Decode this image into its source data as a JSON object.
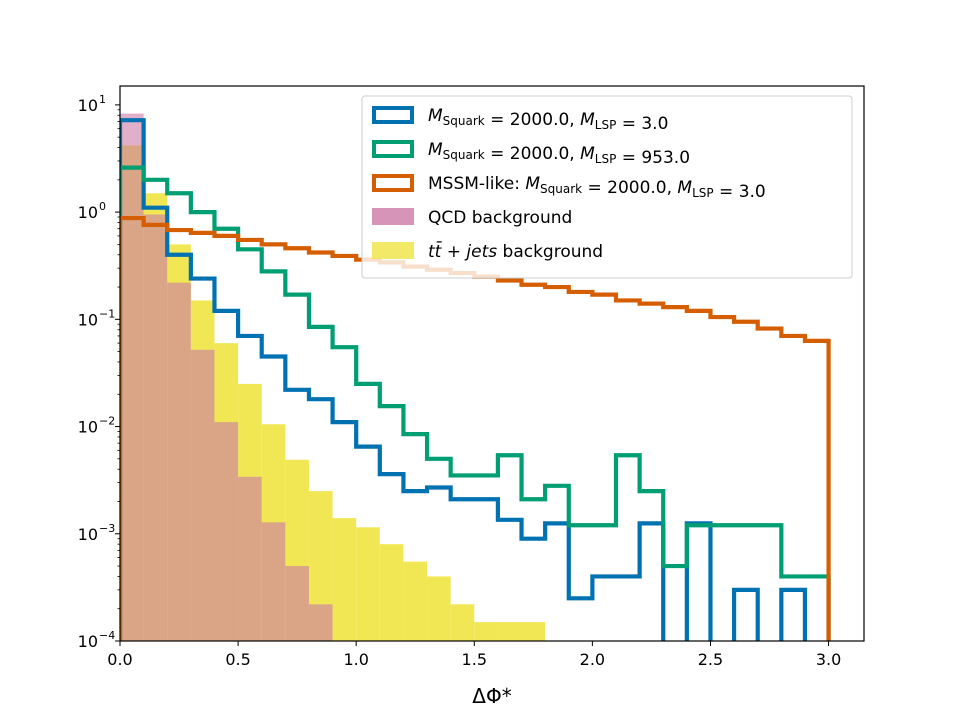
{
  "chart_data": {
    "type": "histogram",
    "xlabel": "ΔΦ*",
    "ylabel": "",
    "xlim": [
      0,
      3.15
    ],
    "ylim": [
      0.0001,
      15
    ],
    "yscale": "log",
    "bin_edges": [
      0.0,
      0.1,
      0.2,
      0.3,
      0.4,
      0.5,
      0.6,
      0.7,
      0.8,
      0.9,
      1.0,
      1.1,
      1.2,
      1.3,
      1.4,
      1.5,
      1.6,
      1.7,
      1.8,
      1.9,
      2.0,
      2.1,
      2.2,
      2.3,
      2.4,
      2.5,
      2.6,
      2.7,
      2.8,
      2.9,
      3.0
    ],
    "x_ticks": [
      {
        "value": 0.0,
        "label": "0.0"
      },
      {
        "value": 0.5,
        "label": "0.5"
      },
      {
        "value": 1.0,
        "label": "1.0"
      },
      {
        "value": 1.5,
        "label": "1.5"
      },
      {
        "value": 2.0,
        "label": "2.0"
      },
      {
        "value": 2.5,
        "label": "2.5"
      },
      {
        "value": 3.0,
        "label": "3.0"
      }
    ],
    "y_ticks": [
      {
        "value": 10,
        "base": "10",
        "exp": "1"
      },
      {
        "value": 1,
        "base": "10",
        "exp": "0"
      },
      {
        "value": 0.1,
        "base": "10",
        "exp": "−1"
      },
      {
        "value": 0.01,
        "base": "10",
        "exp": "−2"
      },
      {
        "value": 0.001,
        "base": "10",
        "exp": "−3"
      },
      {
        "value": 0.0001,
        "base": "10",
        "exp": "−4"
      }
    ],
    "filled_series": [
      {
        "key": "ttbar",
        "name": "tt̄ + jets background",
        "color": "#f0e442",
        "values": [
          4.2,
          1.5,
          0.5,
          0.15,
          0.06,
          0.025,
          0.0105,
          0.0049,
          0.0025,
          0.0014,
          0.00115,
          0.0008,
          0.00055,
          0.0004,
          0.00022,
          0.00015,
          0.00015,
          0.00015,
          9e-05,
          0.0001,
          0.0,
          0.0001,
          0.0,
          0.0,
          0.0,
          0.0,
          0.0,
          0.0,
          0.0,
          0.0
        ]
      },
      {
        "key": "qcd",
        "name": "QCD background",
        "color": "#cc79a7",
        "values": [
          8.3,
          0.95,
          0.22,
          0.052,
          0.011,
          0.0034,
          0.00128,
          0.0005,
          0.00022,
          0.0,
          0.0,
          0.0,
          0.0,
          0.0,
          0.0,
          0.0,
          0.0,
          0.0,
          0.0,
          0.0,
          0.0,
          0.0,
          0.0,
          0.0,
          0.0,
          0.0,
          0.0,
          0.0,
          0.0,
          0.0
        ]
      }
    ],
    "step_series": [
      {
        "key": "squark_lsp3",
        "color": "#0072b2",
        "values": [
          7.2,
          1.1,
          0.4,
          0.24,
          0.12,
          0.07,
          0.045,
          0.022,
          0.018,
          0.011,
          0.0065,
          0.0036,
          0.0025,
          0.0027,
          0.0021,
          0.0021,
          0.00135,
          0.0009,
          0.00125,
          0.00025,
          0.0004,
          0.0004,
          0.00125,
          2e-05,
          0.00125,
          2e-05,
          0.0003,
          2e-05,
          0.0003,
          2e-05
        ]
      },
      {
        "key": "squark_lsp953",
        "color": "#009e73",
        "values": [
          2.6,
          2.0,
          1.5,
          1.0,
          0.7,
          0.45,
          0.28,
          0.17,
          0.085,
          0.055,
          0.025,
          0.0155,
          0.0085,
          0.005,
          0.0035,
          0.0035,
          0.0054,
          0.0021,
          0.0028,
          0.0012,
          0.0012,
          0.0054,
          0.0025,
          0.0005,
          0.0012,
          0.0012,
          0.0012,
          0.0012,
          0.0004,
          0.0004
        ]
      },
      {
        "key": "mssm_like",
        "color": "#d55e00",
        "values": [
          0.88,
          0.76,
          0.68,
          0.64,
          0.6,
          0.55,
          0.5,
          0.46,
          0.42,
          0.39,
          0.36,
          0.34,
          0.31,
          0.29,
          0.27,
          0.25,
          0.23,
          0.21,
          0.2,
          0.18,
          0.17,
          0.15,
          0.14,
          0.13,
          0.12,
          0.105,
          0.095,
          0.082,
          0.07,
          0.063
        ]
      }
    ],
    "legend": {
      "placement": "top-right",
      "entries": [
        {
          "key": "squark_lsp3",
          "style": "outline",
          "color": "#0072b2",
          "parts": [
            {
              "t": "M",
              "i": true
            },
            {
              "t": "Squark",
              "sub": true
            },
            {
              "t": " = 2000.0, "
            },
            {
              "t": "M",
              "i": true
            },
            {
              "t": "LSP",
              "sub": true
            },
            {
              "t": " = 3.0"
            }
          ]
        },
        {
          "key": "squark_lsp953",
          "style": "outline",
          "color": "#009e73",
          "parts": [
            {
              "t": "M",
              "i": true
            },
            {
              "t": "Squark",
              "sub": true
            },
            {
              "t": " = 2000.0, "
            },
            {
              "t": "M",
              "i": true
            },
            {
              "t": "LSP",
              "sub": true
            },
            {
              "t": " = 953.0"
            }
          ]
        },
        {
          "key": "mssm_like",
          "style": "outline",
          "color": "#d55e00",
          "parts": [
            {
              "t": "MSSM-like: "
            },
            {
              "t": "M",
              "i": true
            },
            {
              "t": "Squark",
              "sub": true
            },
            {
              "t": " = 2000.0, "
            },
            {
              "t": "M",
              "i": true
            },
            {
              "t": "LSP",
              "sub": true
            },
            {
              "t": " = 3.0"
            }
          ]
        },
        {
          "key": "qcd",
          "style": "filled",
          "color": "#cc79a7",
          "parts": [
            {
              "t": "QCD background"
            }
          ]
        },
        {
          "key": "ttbar",
          "style": "filled",
          "color": "#f0e442",
          "parts": [
            {
              "t": "tt̄",
              "i": true
            },
            {
              "t": " + "
            },
            {
              "t": "jets",
              "i": true
            },
            {
              "t": " background"
            }
          ]
        }
      ]
    }
  }
}
